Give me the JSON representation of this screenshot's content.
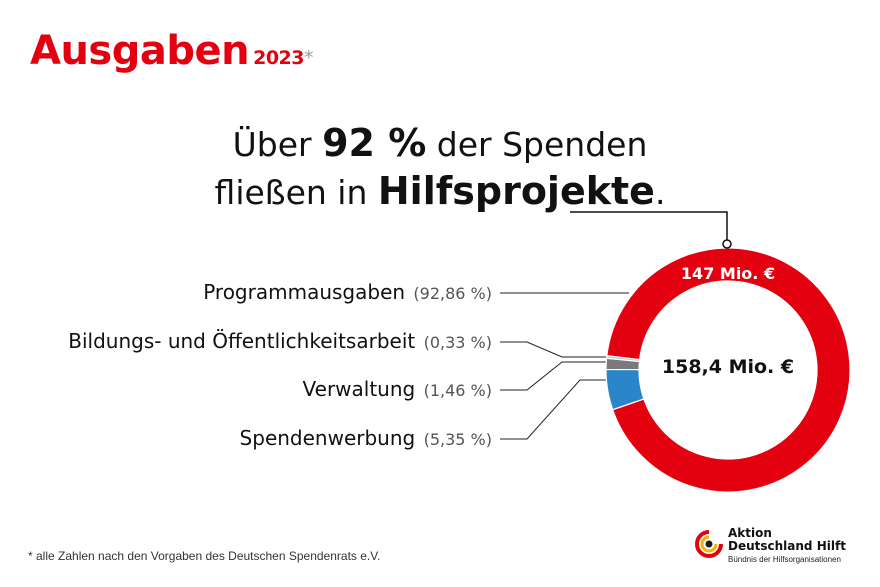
{
  "header": {
    "title": "Ausgaben",
    "year": "2023",
    "asterisk": "*"
  },
  "headline": {
    "line1_a": "Über ",
    "line1_b": "92 %",
    "line1_c": " der Spenden",
    "line2_a": "fließen in ",
    "line2_b": "Hilfsprojekte",
    "line2_c": "."
  },
  "colors": {
    "accent": "#e3000f",
    "programm": "#e3000f",
    "bildung": "#a9c7e0",
    "verwaltung": "#7a7a7a",
    "werbung": "#2a86c8"
  },
  "chart_data": {
    "type": "pie",
    "style": "donut",
    "total_label": "158,4 Mio. €",
    "segments": [
      {
        "name": "Programmausgaben",
        "percent": 92.86,
        "percent_label": "(92,86 %)",
        "value_label": "147 Mio. €",
        "color": "#e3000f"
      },
      {
        "name": "Bildungs- und Öffentlichkeitsarbeit",
        "percent": 0.33,
        "percent_label": "(0,33 %)",
        "value_label": "",
        "color": "#a9c7e0"
      },
      {
        "name": "Verwaltung",
        "percent": 1.46,
        "percent_label": "(1,46 %)",
        "value_label": "",
        "color": "#7a7a7a"
      },
      {
        "name": "Spendenwerbung",
        "percent": 5.35,
        "percent_label": "(5,35 %)",
        "value_label": "",
        "color": "#2a86c8"
      }
    ]
  },
  "footer": {
    "note": "* alle Zahlen nach den Vorgaben des Deutschen Spendenrats e.V."
  },
  "logo": {
    "line1": "Aktion",
    "line2": "Deutschland Hilft",
    "line3": "Bündnis der Hilfsorganisationen"
  }
}
